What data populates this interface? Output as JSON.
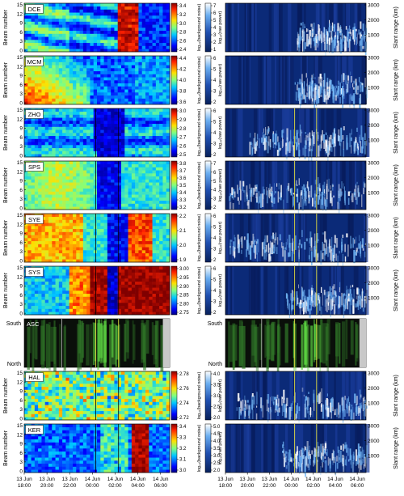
{
  "chart_data": {
    "type": "heatmap",
    "time_labels": [
      [
        "13 Jun",
        "18:00"
      ],
      [
        "13 Jun",
        "20:00"
      ],
      [
        "13 Jun",
        "22:00"
      ],
      [
        "14 Jun",
        "00:00"
      ],
      [
        "14 Jun",
        "02:00"
      ],
      [
        "14 Jun",
        "04:00"
      ],
      [
        "14 Jun",
        "06:00"
      ]
    ],
    "beam_ylabel": "Beam number",
    "beam_ticks": [
      "0",
      "3",
      "6",
      "9",
      "12",
      "15"
    ],
    "slant_ylabel": "Slant range (km)",
    "slant_ticks": [
      "1000",
      "2000",
      "3000"
    ],
    "raw_power_label": "log₁₀(raw power)",
    "noise_label": "log₁₀(background noise)",
    "asc_ylabel": {
      "top": "South",
      "bottom": "North"
    },
    "panels": [
      {
        "station": "DCE",
        "noise_ticks": [
          "2.4",
          "2.6",
          "2.8",
          "3.0",
          "3.2",
          "3.4"
        ],
        "power_ticks": [
          "1",
          "2",
          "3",
          "4",
          "5",
          "6",
          "7"
        ]
      },
      {
        "station": "MCM",
        "noise_ticks": [
          "3.6",
          "3.8",
          "4.0",
          "4.2",
          "4.4"
        ],
        "power_ticks": [
          "2",
          "3",
          "4",
          "5",
          "6"
        ]
      },
      {
        "station": "ZHO",
        "noise_ticks": [
          "2.5",
          "2.6",
          "2.7",
          "2.8",
          "2.9",
          "3.0"
        ],
        "power_ticks": [
          "2",
          "3",
          "4",
          "5",
          "6"
        ]
      },
      {
        "station": "SPS",
        "noise_ticks": [
          "3.2",
          "3.3",
          "3.4",
          "3.5",
          "3.6",
          "3.7",
          "3.8"
        ],
        "power_ticks": [
          "2",
          "3",
          "4",
          "5",
          "6",
          "7"
        ]
      },
      {
        "station": "SYE",
        "noise_ticks": [
          "1.9",
          "2.0",
          "2.1",
          "2.2"
        ],
        "power_ticks": [
          "2",
          "3",
          "4",
          "5",
          "6"
        ]
      },
      {
        "station": "SYS",
        "noise_ticks": [
          "2.75",
          "2.80",
          "2.85",
          "2.90",
          "2.95",
          "3.00"
        ],
        "power_ticks": [
          "2",
          "3",
          "4",
          "5",
          "6"
        ]
      },
      {
        "station": "ASC"
      },
      {
        "station": "HAL",
        "noise_ticks": [
          "2.72",
          "2.74",
          "2.76",
          "2.78"
        ],
        "power_ticks": [
          "2.0",
          "2.5",
          "3.0",
          "3.5",
          "4.0"
        ]
      },
      {
        "station": "KER",
        "noise_ticks": [
          "3.0",
          "3.1",
          "3.2",
          "3.3",
          "3.4"
        ],
        "power_ticks": [
          "2.0",
          "2.5",
          "3.0",
          "3.5",
          "4.0",
          "4.5",
          "5.0"
        ]
      }
    ]
  }
}
